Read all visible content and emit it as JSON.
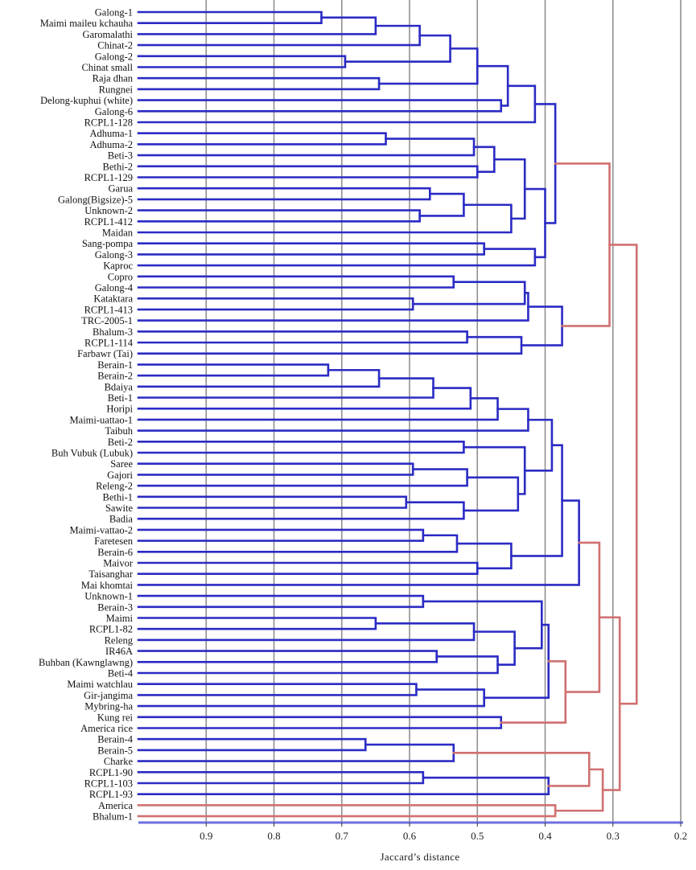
{
  "chart_data": {
    "type": "dendrogram",
    "xlabel": "Jaccard’s distance",
    "xlim": [
      0.2,
      1.0
    ],
    "x_reversed": true,
    "ticks": [
      "0.9",
      "0.8",
      "0.7",
      "0.6",
      "0.5",
      "0.4",
      "0.3",
      "0.2"
    ],
    "tick_values": [
      0.9,
      0.8,
      0.7,
      0.6,
      0.5,
      0.4,
      0.3,
      0.2
    ],
    "grid": true,
    "colors": {
      "branch": "#2b2bc4",
      "deep_branch": "#d07070",
      "grid": "#8f8f8f",
      "axis": "#6f6fe0"
    },
    "leaves": [
      "Galong-1",
      "Maimi maileu kchauha",
      "Garomalathi",
      "Chinat-2",
      "Galong-2",
      "Chinat small",
      "Raja dhan",
      "Rungnei",
      "Delong-kuphui (white)",
      "Galong-6",
      "RCPL1-128",
      "Adhuma-1",
      "Adhuma-2",
      "Beti-3",
      "Bethi-2",
      "RCPL1-129",
      "Garua",
      "Galong(Bigsize)-5",
      "Unknown-2",
      "RCPL1-412",
      "Maidan",
      "Sang-pompa",
      "Galong-3",
      "Kaproc",
      "Copro",
      "Galong-4",
      "Kataktara",
      "RCPL1-413",
      "TRC-2005-1",
      "Bhalum-3",
      "RCPL1-114",
      "Farbawr (Tai)",
      "Berain-1",
      "Berain-2",
      "Bdaiya",
      "Beti-1",
      "Horipi",
      "Maimi-uattao-1",
      "Taibuh",
      "Beti-2",
      "Buh Vubuk (Lubuk)",
      "Saree",
      "Gajori",
      "Releng-2",
      "Bethi-1",
      "Sawite",
      "Badia",
      "Maimi-vattao-2",
      "Faretesen",
      "Berain-6",
      "Maivor",
      "Taisanghar",
      "Mai khomtai",
      "Unknown-1",
      "Berain-3",
      "Maimi",
      "RCPL1-82",
      "Releng",
      "IR46A",
      "Buhban (Kawnglawng)",
      "Beti-4",
      "Maimi watchlau",
      "Gir-jangima",
      "Mybring-ha",
      "Kung rei",
      "America rice",
      "Berain-4",
      "Berain-5",
      "Charke",
      "RCPL1-90",
      "RCPL1-103",
      "RCPL1-93",
      "America",
      "Bhalum-1"
    ],
    "merges": [
      {
        "a": "L0",
        "b": "L1",
        "h": 0.73
      },
      {
        "a": "N0",
        "b": "L2",
        "h": 0.65
      },
      {
        "a": "N1",
        "b": "L3",
        "h": 0.585
      },
      {
        "a": "L4",
        "b": "L5",
        "h": 0.695
      },
      {
        "a": "N2",
        "b": "N3",
        "h": 0.54
      },
      {
        "a": "L6",
        "b": "L7",
        "h": 0.645
      },
      {
        "a": "N4",
        "b": "N5",
        "h": 0.5
      },
      {
        "a": "L8",
        "b": "L9",
        "h": 0.465
      },
      {
        "a": "N6",
        "b": "N7",
        "h": 0.455
      },
      {
        "a": "N8",
        "b": "L10",
        "h": 0.415
      },
      {
        "a": "L11",
        "b": "L12",
        "h": 0.635
      },
      {
        "a": "N10",
        "b": "L13",
        "h": 0.505
      },
      {
        "a": "L14",
        "b": "L15",
        "h": 0.5
      },
      {
        "a": "N11",
        "b": "N12",
        "h": 0.475
      },
      {
        "a": "L16",
        "b": "L17",
        "h": 0.57
      },
      {
        "a": "L18",
        "b": "L19",
        "h": 0.585
      },
      {
        "a": "N14",
        "b": "N15",
        "h": 0.52
      },
      {
        "a": "N16",
        "b": "L20",
        "h": 0.45
      },
      {
        "a": "N13",
        "b": "N17",
        "h": 0.43
      },
      {
        "a": "L21",
        "b": "L22",
        "h": 0.49
      },
      {
        "a": "N19",
        "b": "L23",
        "h": 0.415
      },
      {
        "a": "N18",
        "b": "N20",
        "h": 0.4
      },
      {
        "a": "N9",
        "b": "N21",
        "h": 0.385
      },
      {
        "a": "L24",
        "b": "L25",
        "h": 0.535
      },
      {
        "a": "L26",
        "b": "L27",
        "h": 0.595
      },
      {
        "a": "N23",
        "b": "N24",
        "h": 0.43
      },
      {
        "a": "N25",
        "b": "L28",
        "h": 0.425
      },
      {
        "a": "L29",
        "b": "L30",
        "h": 0.515
      },
      {
        "a": "N27",
        "b": "L31",
        "h": 0.435
      },
      {
        "a": "N26",
        "b": "N28",
        "h": 0.375
      },
      {
        "a": "N22",
        "b": "N29",
        "h": 0.305
      },
      {
        "a": "L32",
        "b": "L33",
        "h": 0.72
      },
      {
        "a": "N31",
        "b": "L34",
        "h": 0.645
      },
      {
        "a": "N32",
        "b": "L35",
        "h": 0.565
      },
      {
        "a": "N33",
        "b": "L36",
        "h": 0.51
      },
      {
        "a": "N34",
        "b": "L37",
        "h": 0.47
      },
      {
        "a": "N35",
        "b": "L38",
        "h": 0.425
      },
      {
        "a": "L39",
        "b": "L40",
        "h": 0.52
      },
      {
        "a": "L41",
        "b": "L42",
        "h": 0.595
      },
      {
        "a": "N38",
        "b": "L43",
        "h": 0.515
      },
      {
        "a": "L44",
        "b": "L45",
        "h": 0.605
      },
      {
        "a": "N40",
        "b": "L46",
        "h": 0.52
      },
      {
        "a": "N39",
        "b": "N41",
        "h": 0.44
      },
      {
        "a": "N37",
        "b": "N42",
        "h": 0.43
      },
      {
        "a": "N36",
        "b": "N43",
        "h": 0.39
      },
      {
        "a": "L47",
        "b": "L48",
        "h": 0.58
      },
      {
        "a": "N45",
        "b": "L49",
        "h": 0.53
      },
      {
        "a": "L50",
        "b": "L51",
        "h": 0.5
      },
      {
        "a": "N46",
        "b": "N47",
        "h": 0.45
      },
      {
        "a": "N44",
        "b": "N48",
        "h": 0.375
      },
      {
        "a": "N49",
        "b": "L52",
        "h": 0.35
      },
      {
        "a": "L53",
        "b": "L54",
        "h": 0.58
      },
      {
        "a": "L55",
        "b": "L56",
        "h": 0.65
      },
      {
        "a": "N52",
        "b": "L57",
        "h": 0.505
      },
      {
        "a": "L58",
        "b": "L59",
        "h": 0.56
      },
      {
        "a": "N54",
        "b": "L60",
        "h": 0.47
      },
      {
        "a": "N53",
        "b": "N55",
        "h": 0.445
      },
      {
        "a": "N51",
        "b": "N56",
        "h": 0.405
      },
      {
        "a": "L61",
        "b": "L62",
        "h": 0.59
      },
      {
        "a": "N58",
        "b": "L63",
        "h": 0.49
      },
      {
        "a": "N57",
        "b": "N59",
        "h": 0.395
      },
      {
        "a": "L64",
        "b": "L65",
        "h": 0.465
      },
      {
        "a": "N60",
        "b": "N61",
        "h": 0.37
      },
      {
        "a": "N50",
        "b": "N62",
        "h": 0.32
      },
      {
        "a": "L66",
        "b": "L67",
        "h": 0.665
      },
      {
        "a": "N64",
        "b": "L68",
        "h": 0.535
      },
      {
        "a": "L69",
        "b": "L70",
        "h": 0.58
      },
      {
        "a": "N66",
        "b": "L71",
        "h": 0.395
      },
      {
        "a": "N65",
        "b": "N67",
        "h": 0.335
      },
      {
        "a": "L72",
        "b": "L73",
        "h": 0.385
      },
      {
        "a": "N68",
        "b": "N69",
        "h": 0.315
      },
      {
        "a": "N63",
        "b": "N70",
        "h": 0.29
      },
      {
        "a": "N30",
        "b": "N71",
        "h": 0.265
      }
    ]
  }
}
